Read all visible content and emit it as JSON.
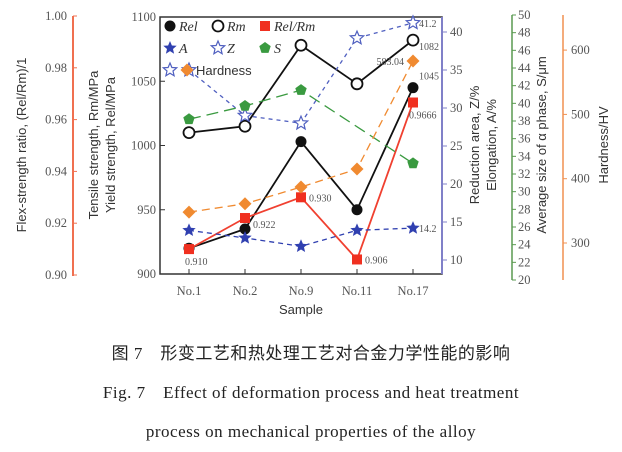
{
  "chart_data": {
    "type": "line",
    "xlabel": "Sample",
    "categories": [
      "No.1",
      "No.2",
      "No.9",
      "No.11",
      "No.17"
    ],
    "axes": {
      "ratio": {
        "label": "Flex-strength ratio, (Rel/Rm)/1",
        "ylim": [
          0.9,
          1.0
        ],
        "ticks": [
          "0.90",
          "0.92",
          "0.94",
          "0.96",
          "0.98",
          "1.00"
        ],
        "color": "#f07050"
      },
      "strength": {
        "label_tensile": "Tensile strength, Rm/MPa",
        "label_yield": "Yield strength, Rel/MPa",
        "ylim": [
          900,
          1100
        ],
        "ticks": [
          "900",
          "950",
          "1000",
          "1050",
          "1100"
        ]
      },
      "za": {
        "label_z": "Reduction area, Z/%",
        "label_a": "Elongation, A/%",
        "ylim": [
          8.5,
          42
        ],
        "ticks": [
          "10",
          "15",
          "20",
          "25",
          "30",
          "35",
          "40"
        ],
        "color": "#8080c8"
      },
      "s": {
        "label": "Average size of α phase, S/μm",
        "ylim": [
          20,
          50
        ],
        "ticks": [
          "20",
          "22",
          "24",
          "26",
          "28",
          "30",
          "32",
          "34",
          "36",
          "38",
          "40",
          "42",
          "44",
          "46",
          "48",
          "50"
        ],
        "color": "#5a9a50"
      },
      "hv": {
        "label": "Hardness/HV",
        "ylim": [
          250,
          651
        ],
        "ticks": [
          "300",
          "400",
          "500",
          "600"
        ],
        "color": "#f09050"
      }
    },
    "series": [
      {
        "name": "Rel",
        "axis": "strength",
        "color": "#111111",
        "marker": "circle-filled",
        "values": [
          920,
          935,
          1003,
          950,
          1045
        ],
        "labels": [
          "",
          "",
          "",
          "",
          "1045"
        ]
      },
      {
        "name": "Rm",
        "axis": "strength",
        "color": "#111111",
        "marker": "circle-open",
        "values": [
          1010,
          1015,
          1078,
          1048,
          1082
        ],
        "labels": [
          "",
          "",
          "",
          "",
          "1082"
        ]
      },
      {
        "name": "Rel/Rm",
        "axis": "ratio",
        "color": "#f03020",
        "marker": "square",
        "values": [
          0.91,
          0.922,
          0.93,
          0.906,
          0.9666
        ],
        "labels": [
          "0.910",
          "0.922",
          "0.930",
          "0.906",
          "0.9666"
        ]
      },
      {
        "name": "A",
        "axis": "za",
        "color": "#3040b0",
        "marker": "star-filled",
        "values": [
          13.9,
          12.9,
          11.8,
          13.9,
          14.2
        ],
        "labels": [
          "",
          "",
          "",
          "",
          "14.2"
        ]
      },
      {
        "name": "Z",
        "axis": "za",
        "color": "#5060c0",
        "marker": "star-open",
        "values": [
          35.0,
          29.0,
          28.0,
          39.2,
          41.2
        ],
        "labels": [
          "",
          "",
          "",
          "",
          "41.2"
        ]
      },
      {
        "name": "S",
        "axis": "s",
        "color": "#3a9a40",
        "marker": "pentagon",
        "values": [
          38.2,
          39.7,
          41.5,
          null,
          33.2
        ],
        "labels": [
          "",
          "",
          "",
          "",
          ""
        ]
      },
      {
        "name": "Hardness",
        "axis": "hv",
        "color": "#f08a30",
        "marker": "diamond",
        "values": [
          348,
          361,
          387,
          415,
          583.04
        ],
        "labels": [
          "",
          "",
          "",
          "",
          "583.04"
        ]
      }
    ],
    "legend": {
      "placement": "top-left",
      "entries": [
        "Rel",
        "Rm",
        "Rel/Rm",
        "A",
        "Z",
        "S",
        "Hardness"
      ]
    },
    "grid": false
  },
  "caption": {
    "cn": "图 7　形变工艺和热处理工艺对合金力学性能的影响",
    "en_line1": "Fig. 7　Effect of deformation process and heat treatment",
    "en_line2": "process on mechanical properties of the alloy"
  }
}
